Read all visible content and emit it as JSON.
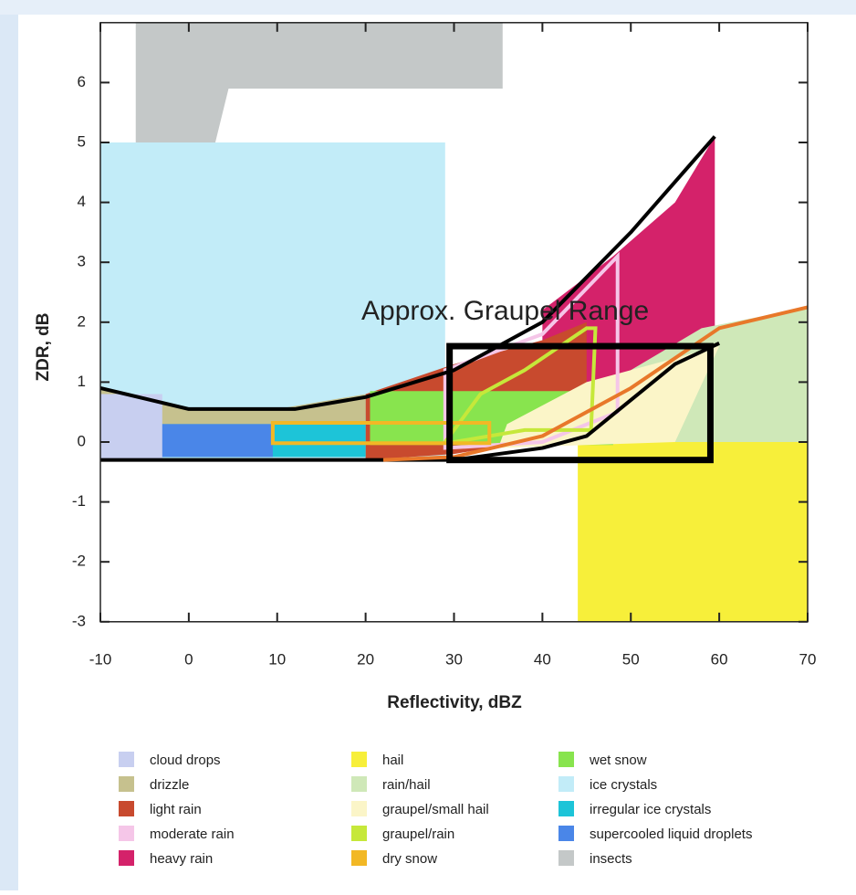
{
  "chart_data": {
    "type": "region",
    "xlabel": "Reflectivity, dBZ",
    "ylabel": "ZDR, dB",
    "xlim": [
      -10,
      70
    ],
    "ylim": [
      -3,
      7
    ],
    "xticks": [
      -10,
      0,
      10,
      20,
      30,
      40,
      50,
      60,
      70
    ],
    "yticks": [
      -3,
      -2,
      -1,
      0,
      1,
      2,
      3,
      4,
      5,
      6
    ],
    "regions": [
      {
        "name": "cloud drops",
        "color": "#c8cff0",
        "x": [
          -10,
          -3,
          -3,
          -10
        ],
        "y": [
          -0.3,
          -0.3,
          0.8,
          0.8
        ]
      },
      {
        "name": "drizzle",
        "color": "#c6c18e",
        "x": [
          -10,
          0,
          10,
          20,
          20,
          -10
        ],
        "y": [
          0.9,
          0.55,
          0.55,
          0.8,
          0.3,
          0.3
        ]
      },
      {
        "name": "light rain",
        "color": "#c84a2e",
        "x": [
          20,
          20,
          30,
          40,
          45,
          45,
          38,
          30
        ],
        "y": [
          -0.3,
          0.8,
          1.3,
          1.7,
          2,
          0.4,
          0,
          -0.2
        ]
      },
      {
        "name": "moderate rain",
        "color": "#f5c6e8",
        "outline": true,
        "x": [
          29,
          29,
          40,
          48.5,
          48.5,
          40,
          29
        ],
        "y": [
          -0.1,
          1.2,
          1.8,
          3.1,
          0.5,
          0,
          -0.1
        ]
      },
      {
        "name": "heavy rain",
        "color": "#d4226a",
        "x": [
          40,
          40,
          48,
          55,
          59.5,
          59.5,
          55,
          48
        ],
        "y": [
          0,
          2.2,
          3.1,
          4,
          5.1,
          1.6,
          1.4,
          0.5
        ]
      },
      {
        "name": "hail",
        "color": "#f7ef3a",
        "x": [
          44,
          70,
          70,
          44
        ],
        "y": [
          -3,
          -3,
          0,
          0
        ]
      },
      {
        "name": "rain/hail",
        "color": "#cfe8b8",
        "x": [
          45,
          70,
          70,
          58,
          50
        ],
        "y": [
          0,
          0,
          2.25,
          1.9,
          1.2
        ]
      },
      {
        "name": "graupel/small hail",
        "color": "#fbf5c8",
        "x": [
          35,
          55,
          60,
          45,
          36
        ],
        "y": [
          -0.1,
          0,
          1.6,
          1.0,
          0.3
        ]
      },
      {
        "name": "graupel/rain",
        "color": "#c6e83a",
        "outline": true,
        "x": [
          29,
          33,
          38,
          45,
          46,
          45.5,
          38,
          30
        ],
        "y": [
          0,
          0.8,
          1.2,
          1.9,
          1.9,
          0.2,
          0.2,
          0
        ]
      },
      {
        "name": "dry snow",
        "color": "#f2b825",
        "outline": true,
        "x": [
          9.5,
          34,
          34,
          9.5
        ],
        "y": [
          -0.02,
          -0.02,
          0.32,
          0.32
        ]
      },
      {
        "name": "wet snow",
        "color": "#88e44e",
        "x": [
          20.5,
          48,
          48,
          20.5
        ],
        "y": [
          -0.05,
          -0.05,
          0.85,
          0.85
        ]
      },
      {
        "name": "ice crystals",
        "color": "#c2ecf8",
        "x": [
          -10,
          29,
          29,
          -10
        ],
        "y": [
          -0.3,
          -0.3,
          5,
          5
        ]
      },
      {
        "name": "irregular ice crystals",
        "color": "#1dc4d8",
        "x": [
          -10,
          20,
          20,
          -10
        ],
        "y": [
          -0.25,
          -0.25,
          0.45,
          0.45
        ]
      },
      {
        "name": "supercooled liquid droplets",
        "color": "#4a86e8",
        "x": [
          -9,
          9.5,
          9.5,
          -9
        ],
        "y": [
          -0.25,
          -0.25,
          0.3,
          0.3
        ]
      },
      {
        "name": "insects",
        "color": "#c4c8c8",
        "x": [
          -6,
          35.5,
          35.5,
          4.5,
          3,
          -6
        ],
        "y": [
          7,
          7,
          5.9,
          5.9,
          5,
          5
        ]
      }
    ],
    "boundaries": [
      {
        "color": "#000000",
        "x": [
          -10,
          0,
          12,
          20,
          30,
          40,
          50,
          59.5
        ],
        "y": [
          0.9,
          0.55,
          0.55,
          0.75,
          1.2,
          2,
          3.5,
          5.1
        ]
      },
      {
        "color": "#000000",
        "x": [
          -10,
          30,
          40,
          45,
          50,
          55,
          60
        ],
        "y": [
          -0.3,
          -0.3,
          -0.1,
          0.1,
          0.7,
          1.3,
          1.65
        ]
      },
      {
        "color": "#e8782a",
        "x": [
          22,
          30,
          40,
          50,
          60,
          70
        ],
        "y": [
          -0.3,
          -0.25,
          0.1,
          0.9,
          1.9,
          2.25
        ]
      }
    ],
    "annotation": {
      "text": "Approx. Graupel Range",
      "x": [
        29.5,
        59
      ],
      "y": [
        -0.3,
        1.6
      ]
    }
  }
}
